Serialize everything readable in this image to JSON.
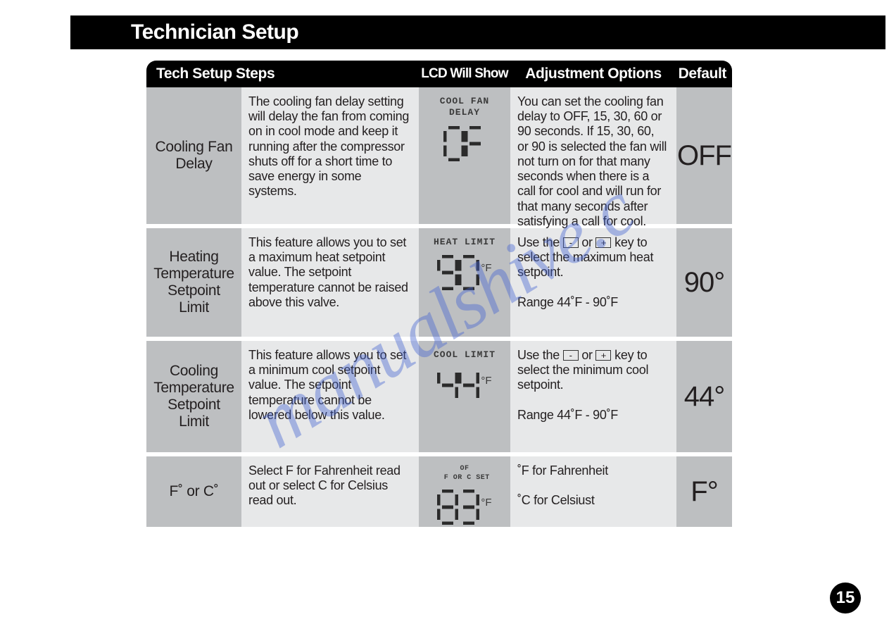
{
  "page": {
    "title": "Technician Setup",
    "page_number": "15",
    "watermark_text": "manualshive.c",
    "background_color": "#ffffff",
    "title_bg": "#000000",
    "title_fg": "#ffffff",
    "cell_gray_dark": "#bdbfc1",
    "cell_gray_light": "#e7e8e9",
    "text_color": "#231f20",
    "watermark_color": "rgba(70,100,210,0.42)"
  },
  "columns": {
    "steps": "Tech Setup Steps",
    "lcd": "LCD Will Show",
    "adjust": "Adjustment Options",
    "default": "Default"
  },
  "rows": [
    {
      "name": "Cooling Fan\nDelay",
      "description": "The cooling fan delay setting will delay the fan from coming on in cool mode and keep it running after the compressor shuts off for a short time to save energy in some systems.",
      "lcd_label": "COOL FAN\nDELAY",
      "lcd_value": "OF",
      "lcd_unit": "",
      "adjustment": "You can set the cooling fan delay to OFF, 15, 30, 60 or 90 seconds. If 15, 30, 60, or 90 is selected the fan will not turn on for that many seconds when there is a call for cool and will run for that many seconds after satisfying a call for cool.",
      "default": "OFF",
      "default_fontsize": 40
    },
    {
      "name": "Heating\nTemperature\nSetpoint\nLimit",
      "description": "This feature allows you to set a maximum heat setpoint value. The setpoint temperature cannot be raised above this valve.",
      "lcd_label": "HEAT LIMIT",
      "lcd_value": "90",
      "lcd_unit": "°F",
      "adjustment_parts": [
        "Use the ",
        "KEY_MINUS",
        " or ",
        "KEY_PLUS",
        " key to select the maximum heat setpoint.\n\nRange 44˚F  -  90˚F"
      ],
      "default": "90°",
      "default_fontsize": 40
    },
    {
      "name": "Cooling\nTemperature\nSetpoint\nLimit",
      "description": "This feature allows you to set a minimum cool setpoint value. The setpoint temperature cannot be lowered below this value.",
      "lcd_label": "COOL LIMIT",
      "lcd_value": "44",
      "lcd_unit": "°F",
      "adjustment_parts": [
        "Use the ",
        "KEY_MINUS",
        " or ",
        "KEY_PLUS",
        " key to select the minimum cool setpoint.\n\nRange 44˚F  -  90˚F"
      ],
      "default": "44°",
      "default_fontsize": 40
    },
    {
      "name": "F˚ or C˚",
      "description": "Select F for Fahrenheit read out or select C for Celsius read out.",
      "lcd_label": "OF\n F OR C SET",
      "lcd_label_small": true,
      "lcd_value": "83",
      "lcd_unit": "°F",
      "adjustment": "˚F for Fahrenheit\n\n˚C for Celsiust",
      "default": "F°",
      "default_fontsize": 40
    }
  ],
  "keys": {
    "minus": "-",
    "plus": "+"
  },
  "seven_segment": {
    "digit_width": 30,
    "digit_height": 50,
    "color": "#2b2b2b",
    "stroke_width": 5,
    "map": {
      "0": "abcdef",
      "1": "bc",
      "2": "abged",
      "3": "abgcd",
      "4": "fgbc",
      "5": "afgcd",
      "6": "afgedc",
      "7": "abc",
      "8": "abcdefg",
      "9": "abcdfg",
      "O": "abcdef",
      "F": "afge"
    }
  }
}
